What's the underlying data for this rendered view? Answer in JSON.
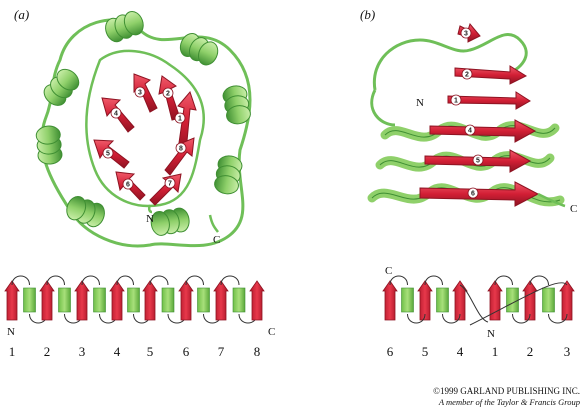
{
  "panels": {
    "a": {
      "label": "(a)",
      "n_label": "N",
      "c_label": "C",
      "strand_labels": [
        "1",
        "2",
        "3",
        "4",
        "5",
        "6",
        "7",
        "8"
      ],
      "topology_n": "N",
      "topology_c": "C",
      "topology_numbers": [
        "1",
        "2",
        "3",
        "4",
        "5",
        "6",
        "7",
        "8"
      ]
    },
    "b": {
      "label": "(b)",
      "n_label": "N",
      "c_label": "C",
      "strand_labels": [
        "1",
        "2",
        "3",
        "4",
        "5",
        "6"
      ],
      "topology_c": "C",
      "topology_n": "N",
      "topology_numbers": [
        "6",
        "5",
        "4",
        "1",
        "2",
        "3"
      ]
    }
  },
  "credit": {
    "line1": "©1999 GARLAND PUBLISHING INC.",
    "line2": "A member of the Taylor & Francis Group"
  },
  "colors": {
    "strand": "#d21f35",
    "strand_dark": "#8e1322",
    "helix": "#8fd06a",
    "helix_dark": "#3f8f33",
    "coil": "#6fbf58"
  }
}
